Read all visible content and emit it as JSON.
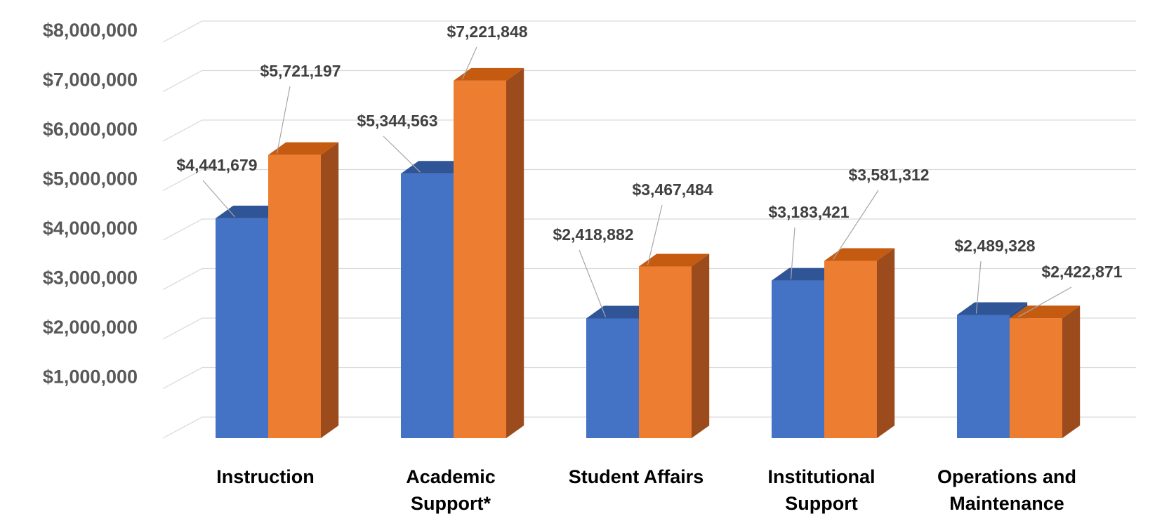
{
  "chart_data": {
    "type": "bar",
    "title": "",
    "xlabel": "",
    "ylabel": "",
    "categories": [
      "Instruction",
      "Academic Support*",
      "Student Affairs",
      "Institutional Support",
      "Operations and Maintenance"
    ],
    "category_lines": [
      [
        "Instruction"
      ],
      [
        "Academic",
        "Support*"
      ],
      [
        "Student Affairs"
      ],
      [
        "Institutional",
        "Support"
      ],
      [
        "Operations and",
        "Maintenance"
      ]
    ],
    "series": [
      {
        "values": [
          4441679,
          5344563,
          2418882,
          3183421,
          2489328
        ],
        "labels": [
          "$4,441,679",
          "$5,344,563",
          "$2,418,882",
          "$3,183,421",
          "$2,489,328"
        ]
      },
      {
        "values": [
          5721197,
          7221848,
          3467484,
          3581312,
          2422871
        ],
        "labels": [
          "$5,721,197",
          "$7,221,848",
          "$3,467,484",
          "$3,581,312",
          "$2,422,871"
        ]
      }
    ],
    "ylim": [
      0,
      8000000
    ],
    "yticks": [
      1000000,
      2000000,
      3000000,
      4000000,
      5000000,
      6000000,
      7000000,
      8000000
    ],
    "ytick_labels": [
      "$1,000,000",
      "$2,000,000",
      "$3,000,000",
      "$4,000,000",
      "$5,000,000",
      "$6,000,000",
      "$7,000,000",
      "$8,000,000"
    ],
    "grid": true,
    "legend": "none",
    "style": "3d-clustered-column",
    "colors": {
      "series": [
        "#4472c4",
        "#ed7d31"
      ],
      "series_top": [
        "#2f5597",
        "#c55a11"
      ],
      "series_side": [
        "#2e4f8f",
        "#9c4c1c"
      ],
      "grid": "#d9d9d9",
      "axis_text": "#595959",
      "label_text": "#404040"
    }
  }
}
